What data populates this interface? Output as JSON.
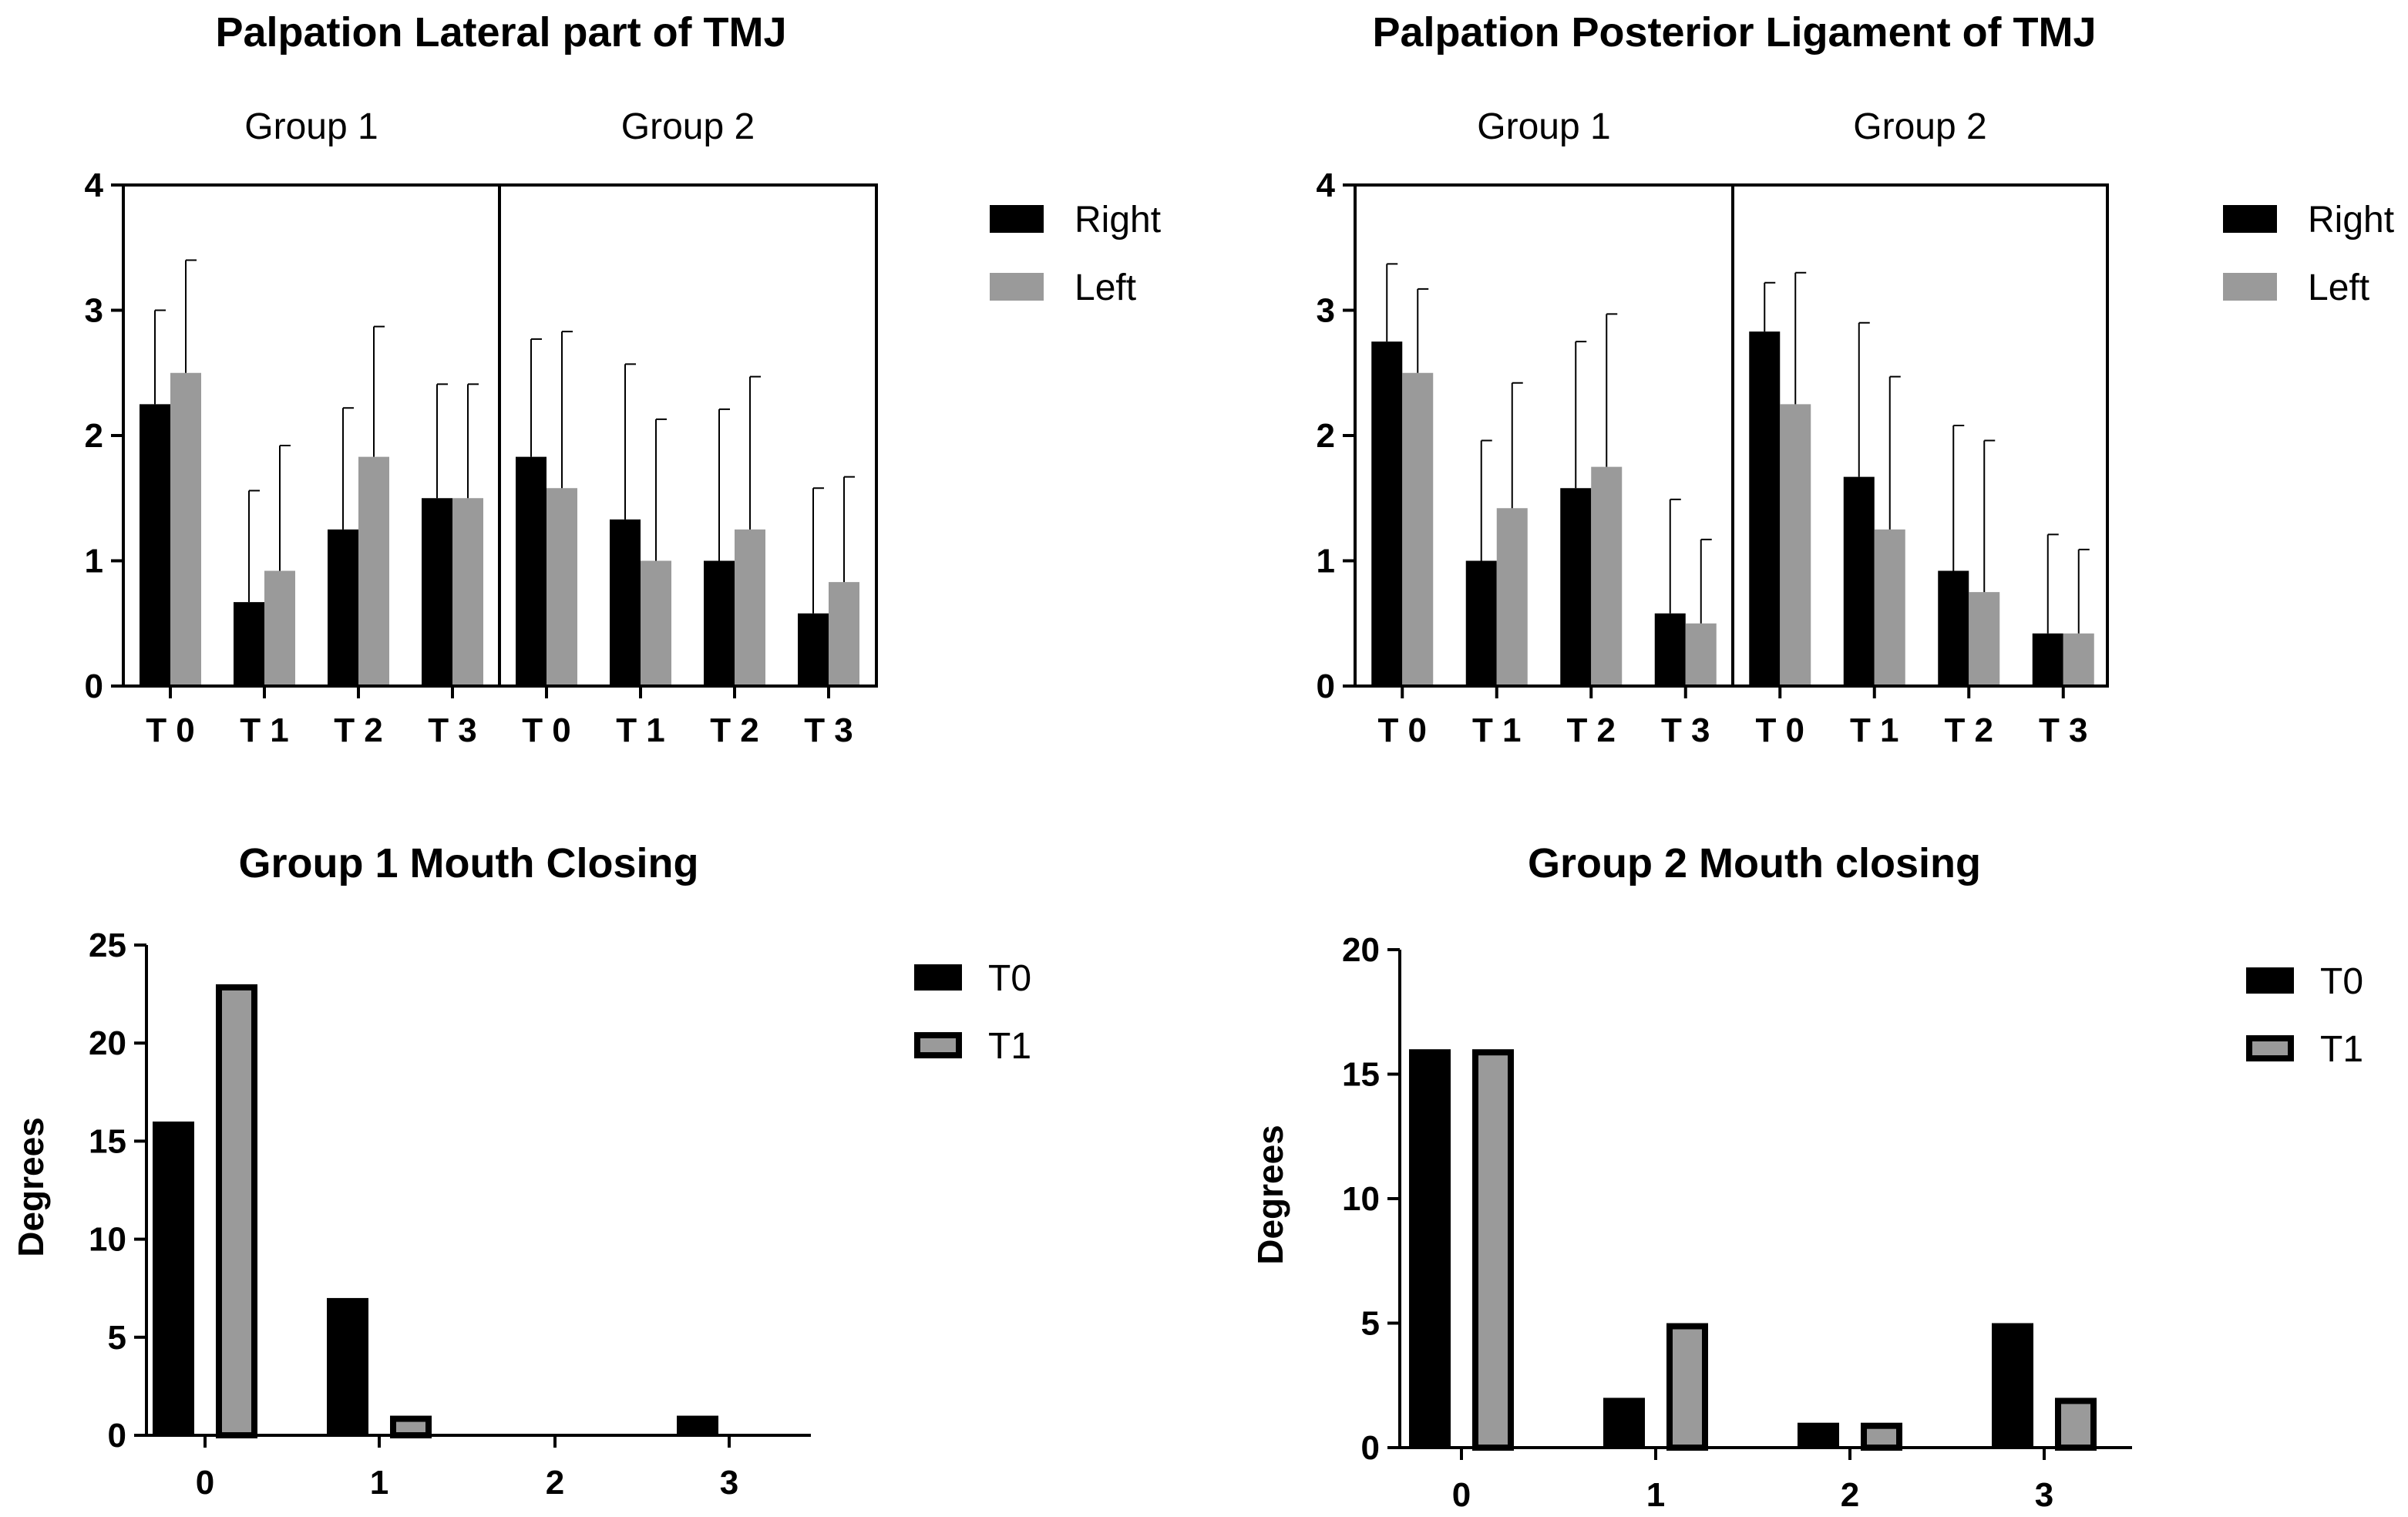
{
  "chart_data": [
    {
      "id": "panel-a",
      "type": "bar",
      "title": "Palpation Lateral part of TMJ",
      "groups": [
        "Group 1",
        "Group 2"
      ],
      "categories": [
        "T 0",
        "T 1",
        "T 2",
        "T 3"
      ],
      "series": [
        {
          "name": "Right",
          "color": "#000000",
          "values": [
            [
              2.25,
              0.67,
              1.25,
              1.5
            ],
            [
              1.83,
              1.33,
              1.0,
              0.58
            ]
          ],
          "errors": [
            [
              0.75,
              0.89,
              0.97,
              0.91
            ],
            [
              0.94,
              1.24,
              1.21,
              1.0
            ]
          ]
        },
        {
          "name": "Left",
          "color": "#9a9a9a",
          "values": [
            [
              2.5,
              0.92,
              1.83,
              1.5
            ],
            [
              1.58,
              1.0,
              1.25,
              0.83
            ]
          ],
          "errors": [
            [
              0.9,
              1.0,
              1.04,
              0.91
            ],
            [
              1.25,
              1.13,
              1.22,
              0.84
            ]
          ]
        }
      ],
      "yticks": [
        "0",
        "1",
        "2",
        "3",
        "4"
      ],
      "ylim": [
        0,
        4
      ],
      "xlabel": "",
      "ylabel": "",
      "legend_position": "right"
    },
    {
      "id": "panel-b",
      "type": "bar",
      "title": "Palpation Posterior Ligament of TMJ",
      "groups": [
        "Group 1",
        "Group 2"
      ],
      "categories": [
        "T 0",
        "T 1",
        "T 2",
        "T 3"
      ],
      "series": [
        {
          "name": "Right",
          "color": "#000000",
          "values": [
            [
              2.75,
              1.0,
              1.58,
              0.58
            ],
            [
              2.83,
              1.67,
              0.92,
              0.42
            ]
          ],
          "errors": [
            [
              0.62,
              0.96,
              1.17,
              0.91
            ],
            [
              0.39,
              1.23,
              1.16,
              0.79
            ]
          ]
        },
        {
          "name": "Left",
          "color": "#9a9a9a",
          "values": [
            [
              2.5,
              1.42,
              1.75,
              0.5
            ],
            [
              2.25,
              1.25,
              0.75,
              0.42
            ]
          ],
          "errors": [
            [
              0.67,
              1.0,
              1.22,
              0.67
            ],
            [
              1.05,
              1.22,
              1.21,
              0.67
            ]
          ]
        }
      ],
      "yticks": [
        "0",
        "1",
        "2",
        "3",
        "4"
      ],
      "ylim": [
        0,
        4
      ],
      "xlabel": "",
      "ylabel": "",
      "legend_position": "right"
    },
    {
      "id": "panel-c",
      "type": "bar",
      "title": "Group 1 Mouth Closing",
      "categories": [
        "0",
        "1",
        "2",
        "3"
      ],
      "series": [
        {
          "name": "T0",
          "color": "#000000",
          "values": [
            16,
            7,
            0,
            1
          ]
        },
        {
          "name": "T1",
          "color": "#9a9a9a",
          "values": [
            23,
            1,
            0,
            0
          ]
        }
      ],
      "yticks": [
        "0",
        "5",
        "10",
        "15",
        "20",
        "25"
      ],
      "ylim": [
        0,
        25
      ],
      "xlabel": "",
      "ylabel": "Degrees",
      "legend_position": "right"
    },
    {
      "id": "panel-d",
      "type": "bar",
      "title": "Group 2 Mouth closing",
      "categories": [
        "0",
        "1",
        "2",
        "3"
      ],
      "series": [
        {
          "name": "T0",
          "color": "#000000",
          "values": [
            16,
            2,
            1,
            5
          ]
        },
        {
          "name": "T1",
          "color": "#9a9a9a",
          "values": [
            16,
            5,
            1,
            2
          ]
        }
      ],
      "yticks": [
        "0",
        "5",
        "10",
        "15",
        "20"
      ],
      "ylim": [
        0,
        20
      ],
      "xlabel": "",
      "ylabel": "Degrees",
      "legend_position": "right"
    }
  ]
}
